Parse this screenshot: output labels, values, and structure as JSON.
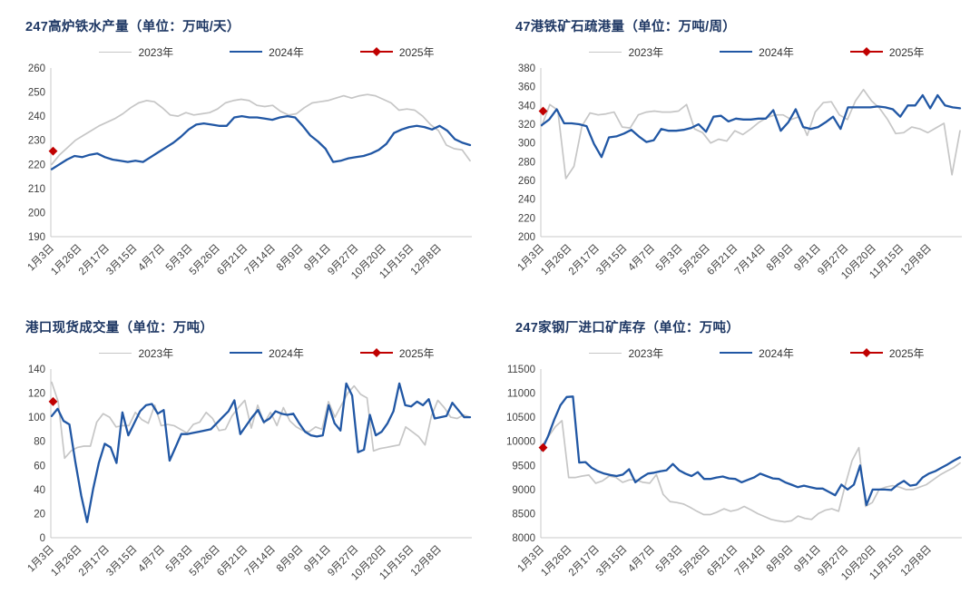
{
  "page": {
    "background": "#ffffff"
  },
  "colors": {
    "title": "#1f3864",
    "axis_line": "#c9c9c9",
    "tick_text": "#3f3f3f",
    "series_2023": "#c6c6c6",
    "series_2024": "#2157a4",
    "series_2025": "#c00000"
  },
  "chart_data": [
    {
      "type": "line",
      "title": "247高炉铁水产量（单位：万吨/天）",
      "xlabel": "",
      "ylabel": "",
      "ylim": [
        190,
        260
      ],
      "ytick_step": 10,
      "grid": false,
      "legend_position": "top",
      "categories": [
        "1月3日",
        "1月26日",
        "2月17日",
        "3月15日",
        "4月7日",
        "5月3日",
        "5月26日",
        "6月21日",
        "7月14日",
        "8月9日",
        "9月1日",
        "9月27日",
        "10月20日",
        "11月15日",
        "12月8日"
      ],
      "series": [
        {
          "name": "2023年",
          "key": "2023",
          "color": "#c6c6c6",
          "values": [
            220,
            224,
            227,
            230,
            232,
            234,
            236,
            237.5,
            239,
            241,
            243.5,
            245.5,
            246.5,
            246,
            243.5,
            240.5,
            240,
            241.5,
            240.5,
            241,
            241.5,
            243,
            245.5,
            246.5,
            247,
            246.5,
            244.5,
            244,
            244.5,
            242,
            240.5,
            241,
            243.5,
            245.5,
            246,
            246.5,
            247.5,
            248.5,
            247.5,
            248.5,
            249,
            248.5,
            247,
            245.5,
            242.5,
            243,
            242.5,
            240,
            236.5,
            234,
            228,
            226.5,
            226,
            221.5
          ]
        },
        {
          "name": "2024年",
          "key": "2024",
          "color": "#2157a4",
          "values": [
            218,
            220,
            222,
            223.5,
            223,
            224,
            224.5,
            223,
            222,
            221.5,
            221,
            221.5,
            221,
            223,
            225,
            227,
            229,
            231.5,
            234.5,
            236.5,
            237,
            236.5,
            236,
            236,
            239.5,
            240,
            239.5,
            239.5,
            239,
            238.5,
            239.5,
            240,
            239.5,
            236,
            232,
            229.5,
            226.5,
            221,
            221.5,
            222.5,
            223,
            223.5,
            224.5,
            226,
            228.5,
            233,
            234.5,
            235.5,
            236,
            235.5,
            234.5,
            236,
            234,
            230.5,
            229,
            228
          ]
        },
        {
          "name": "2025年",
          "key": "2025",
          "color": "#c00000",
          "marker": "diamond",
          "values": [
            225.5
          ]
        }
      ]
    },
    {
      "type": "line",
      "title": "47港铁矿石疏港量（单位：万吨/周）",
      "xlabel": "",
      "ylabel": "",
      "ylim": [
        200,
        380
      ],
      "ytick_step": 20,
      "grid": false,
      "legend_position": "top",
      "categories": [
        "1月3日",
        "1月26日",
        "2月17日",
        "3月15日",
        "4月7日",
        "5月3日",
        "5月26日",
        "6月21日",
        "7月14日",
        "8月9日",
        "9月1日",
        "9月27日",
        "10月20日",
        "11月15日",
        "12月8日"
      ],
      "series": [
        {
          "name": "2023年",
          "key": "2023",
          "color": "#c6c6c6",
          "values": [
            318,
            341,
            335,
            262,
            275,
            318,
            332,
            330,
            331,
            333,
            317,
            316,
            330,
            333,
            334,
            333,
            333,
            334,
            341,
            315,
            311,
            300,
            304,
            302,
            313,
            309,
            315,
            322,
            327,
            330,
            330,
            325,
            328,
            308,
            333,
            343,
            344,
            330,
            325,
            345,
            357,
            345,
            337,
            325,
            310,
            311,
            317,
            315,
            311,
            316,
            321,
            266,
            313
          ]
        },
        {
          "name": "2024年",
          "key": "2024",
          "color": "#2157a4",
          "values": [
            319,
            325,
            336,
            321,
            321,
            320,
            318,
            299,
            285,
            306,
            307,
            310,
            314,
            307,
            301,
            303,
            315,
            313,
            313,
            314,
            316,
            320,
            312,
            328,
            329,
            323,
            326,
            325,
            325,
            326,
            326,
            335,
            313,
            322,
            336,
            317,
            315,
            317,
            322,
            328,
            315,
            338,
            338,
            338,
            338,
            339,
            338,
            336,
            328,
            340,
            340,
            351,
            337,
            351,
            340,
            338,
            337
          ]
        },
        {
          "name": "2025年",
          "key": "2025",
          "color": "#c00000",
          "marker": "diamond",
          "values": [
            334
          ]
        }
      ]
    },
    {
      "type": "line",
      "title": "港口现货成交量（单位：万吨）",
      "xlabel": "",
      "ylabel": "",
      "ylim": [
        0,
        140
      ],
      "ytick_step": 20,
      "grid": false,
      "legend_position": "top",
      "categories": [
        "1月3日",
        "1月26日",
        "2月17日",
        "3月15日",
        "4月7日",
        "5月3日",
        "5月26日",
        "6月21日",
        "7月14日",
        "8月9日",
        "9月1日",
        "9月27日",
        "10月20日",
        "11月15日",
        "12月8日"
      ],
      "series": [
        {
          "name": "2023年",
          "key": "2023",
          "color": "#c6c6c6",
          "values": [
            129,
            113,
            66,
            72,
            75,
            76,
            76,
            96,
            103,
            100,
            92,
            93,
            93,
            104,
            98,
            95,
            110,
            93,
            94,
            93,
            90,
            87,
            94,
            96,
            104,
            99,
            89,
            90,
            101,
            108,
            114,
            91,
            110,
            95,
            104,
            93,
            108,
            97,
            92,
            89,
            88,
            92,
            90,
            113,
            100,
            110,
            120,
            126,
            119,
            116,
            72,
            74,
            75,
            76,
            77,
            92,
            88,
            84,
            77,
            101,
            114,
            108,
            100,
            99,
            102,
            100
          ]
        },
        {
          "name": "2024年",
          "key": "2024",
          "color": "#2157a4",
          "values": [
            101,
            107,
            97,
            94,
            63,
            35,
            13,
            40,
            62,
            78,
            75,
            62,
            104,
            85,
            95,
            105,
            110,
            111,
            103,
            106,
            64,
            75,
            86,
            86,
            87,
            88,
            89,
            90,
            95,
            100,
            105,
            114,
            86,
            93,
            100,
            106,
            96,
            99,
            105,
            103,
            102,
            103,
            95,
            88,
            85,
            84,
            85,
            110,
            95,
            89,
            128,
            118,
            71,
            73,
            102,
            85,
            88,
            95,
            105,
            128,
            110,
            109,
            113,
            110,
            115,
            99,
            100,
            101,
            112,
            106,
            100,
            100
          ]
        },
        {
          "name": "2025年",
          "key": "2025",
          "color": "#c00000",
          "marker": "diamond",
          "values": [
            113
          ]
        }
      ]
    },
    {
      "type": "line",
      "title": "247家钢厂进口矿库存（单位：万吨）",
      "xlabel": "",
      "ylabel": "",
      "ylim": [
        8000,
        11500
      ],
      "ytick_step": 500,
      "grid": false,
      "legend_position": "top",
      "categories": [
        "1月3日",
        "1月26日",
        "2月17日",
        "3月15日",
        "4月7日",
        "5月3日",
        "5月26日",
        "6月21日",
        "7月14日",
        "8月9日",
        "9月1日",
        "9月27日",
        "10月20日",
        "11月15日",
        "12月8日"
      ],
      "series": [
        {
          "name": "2023年",
          "key": "2023",
          "color": "#c6c6c6",
          "values": [
            9900,
            10100,
            10300,
            10430,
            9250,
            9250,
            9280,
            9300,
            9130,
            9180,
            9280,
            9250,
            9150,
            9200,
            9200,
            9150,
            9130,
            9310,
            8900,
            8750,
            8730,
            8700,
            8630,
            8550,
            8480,
            8480,
            8530,
            8600,
            8550,
            8580,
            8650,
            8580,
            8500,
            8440,
            8380,
            8350,
            8330,
            8350,
            8450,
            8400,
            8380,
            8500,
            8570,
            8600,
            8550,
            9100,
            9600,
            9870,
            8650,
            8730,
            9000,
            9050,
            9080,
            9050,
            9000,
            9000,
            9050,
            9100,
            9200,
            9300,
            9380,
            9450,
            9550
          ]
        },
        {
          "name": "2024年",
          "key": "2024",
          "color": "#2157a4",
          "values": [
            9820,
            10100,
            10450,
            10750,
            10920,
            10930,
            9560,
            9570,
            9450,
            9380,
            9330,
            9300,
            9280,
            9310,
            9420,
            9150,
            9250,
            9330,
            9350,
            9380,
            9400,
            9530,
            9400,
            9330,
            9280,
            9360,
            9220,
            9220,
            9250,
            9270,
            9230,
            9220,
            9150,
            9200,
            9250,
            9330,
            9280,
            9230,
            9220,
            9150,
            9100,
            9050,
            9080,
            9050,
            9020,
            9020,
            8950,
            8880,
            9100,
            9000,
            9100,
            9500,
            8680,
            9000,
            9000,
            9000,
            8990,
            9100,
            9180,
            9080,
            9100,
            9250,
            9330,
            9380,
            9450,
            9520,
            9600,
            9670
          ]
        },
        {
          "name": "2025年",
          "key": "2025",
          "color": "#c00000",
          "marker": "diamond",
          "values": [
            9870
          ]
        }
      ]
    }
  ]
}
